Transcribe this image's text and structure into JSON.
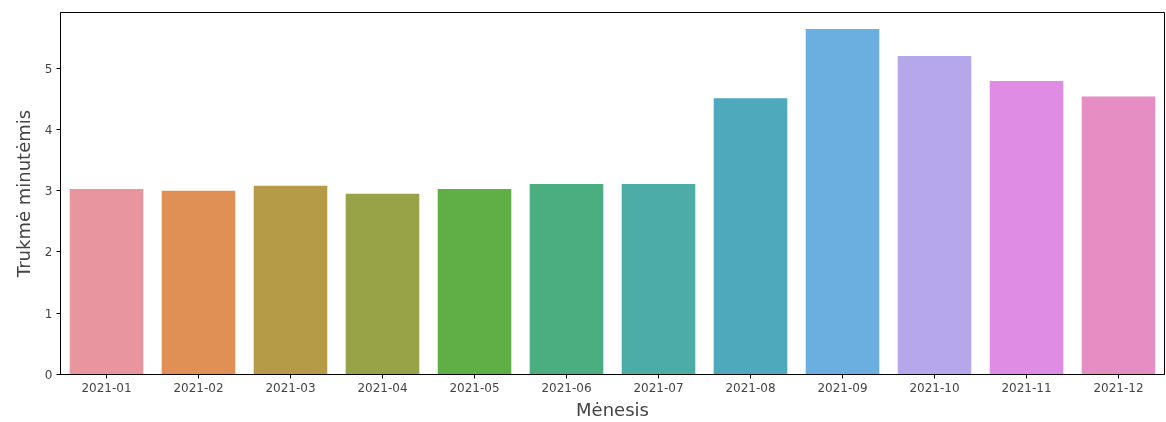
{
  "chart_data": {
    "type": "bar",
    "xlabel": "Mėnesis",
    "ylabel": "Trukmė minutėmis",
    "categories": [
      "2021-01",
      "2021-02",
      "2021-03",
      "2021-04",
      "2021-05",
      "2021-06",
      "2021-07",
      "2021-08",
      "2021-09",
      "2021-10",
      "2021-11",
      "2021-12"
    ],
    "values": [
      3.03,
      3.0,
      3.08,
      2.95,
      3.03,
      3.11,
      3.11,
      4.51,
      5.64,
      5.2,
      4.79,
      4.54
    ],
    "colors": [
      "#e8959f",
      "#e09054",
      "#b59b48",
      "#97a346",
      "#5fae46",
      "#4aae80",
      "#4caca6",
      "#4fa9bc",
      "#6aafe0",
      "#b6a6ea",
      "#df8ce5",
      "#e68dc3"
    ],
    "ylim": [
      0,
      5.91
    ],
    "yticks": [
      0,
      1,
      2,
      3,
      4,
      5
    ],
    "grid": false
  }
}
